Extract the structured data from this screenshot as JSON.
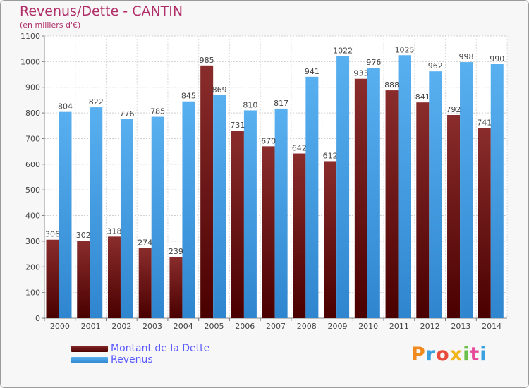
{
  "header": {
    "title": "Revenus/Dette - CANTIN",
    "subtitle": "(en milliers d'€)"
  },
  "legend": [
    {
      "label": "Montant de la Dette",
      "color": "#6e1a1a"
    },
    {
      "label": "Revenus",
      "color": "#4aa3e6"
    }
  ],
  "brand": {
    "text": "Proxiti"
  },
  "chart_data": {
    "type": "bar",
    "title": "Revenus/Dette - CANTIN",
    "subtitle": "(en milliers d'€)",
    "categories": [
      "2000",
      "2001",
      "2002",
      "2003",
      "2004",
      "2005",
      "2006",
      "2007",
      "2008",
      "2009",
      "2010",
      "2011",
      "2012",
      "2013",
      "2014"
    ],
    "series": [
      {
        "name": "Montant de la Dette",
        "color": "#6e1a1a",
        "values": [
          306,
          302,
          318,
          274,
          239,
          985,
          731,
          670,
          642,
          612,
          933,
          888,
          841,
          792,
          741
        ]
      },
      {
        "name": "Revenus",
        "color": "#4aa3e6",
        "values": [
          804,
          822,
          776,
          785,
          845,
          869,
          810,
          817,
          941,
          1022,
          976,
          1025,
          962,
          998,
          990
        ]
      }
    ],
    "ylim": [
      0,
      1100
    ],
    "yticks": [
      0,
      100,
      200,
      300,
      400,
      500,
      600,
      700,
      800,
      900,
      1000,
      1100
    ],
    "grid": true,
    "legend_position": "bottom-left"
  }
}
